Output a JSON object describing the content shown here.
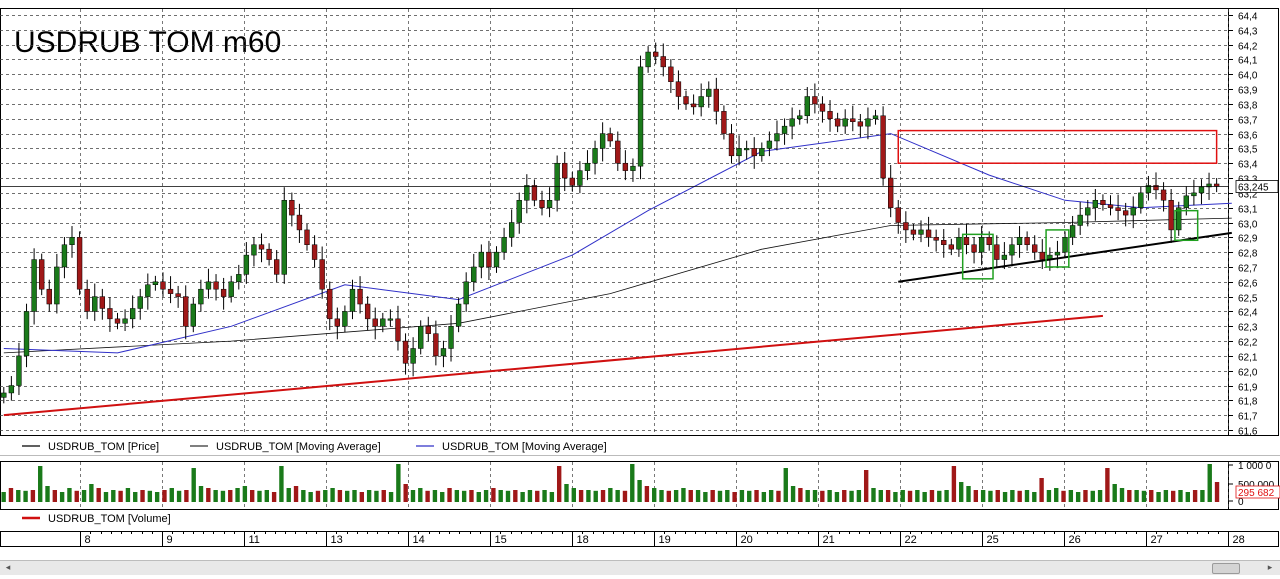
{
  "chart_data": {
    "type": "candlestick",
    "title": "USDRUB TOM m60",
    "price_axis": {
      "range": [
        61.6,
        64.4
      ],
      "tick_labels": [
        "64,4",
        "64,3",
        "64,2",
        "64,1",
        "64,0",
        "63,9",
        "63,8",
        "63,7",
        "63,6",
        "63,5",
        "63,4",
        "63,3",
        "63,2",
        "63,1",
        "63,0",
        "62,9",
        "62,8",
        "62,7",
        "62,6",
        "62,5",
        "62,4",
        "62,3",
        "62,2",
        "62,1",
        "62,0",
        "61,9",
        "61,8",
        "61,7",
        "61,6"
      ],
      "last_price": 63.245,
      "last_price_label": "63,245"
    },
    "days": [
      "8",
      "9",
      "11",
      "13",
      "14",
      "15",
      "18",
      "19",
      "20",
      "21",
      "22",
      "25",
      "26",
      "27",
      "28"
    ],
    "price_points": [
      [
        0,
        61.85
      ],
      [
        2,
        61.9
      ],
      [
        4,
        62.1
      ],
      [
        5,
        62.4
      ],
      [
        6,
        62.75
      ],
      [
        7,
        62.55
      ],
      [
        8,
        62.45
      ],
      [
        9,
        62.7
      ],
      [
        10,
        62.85
      ],
      [
        11,
        62.9
      ],
      [
        12,
        62.55
      ],
      [
        13,
        62.4
      ],
      [
        14,
        62.5
      ],
      [
        15,
        62.42
      ],
      [
        16,
        62.35
      ],
      [
        17,
        62.32
      ],
      [
        18,
        62.35
      ],
      [
        19,
        62.42
      ],
      [
        20,
        62.5
      ],
      [
        21,
        62.58
      ],
      [
        22,
        62.6
      ],
      [
        23,
        62.55
      ],
      [
        24,
        62.52
      ],
      [
        25,
        62.5
      ],
      [
        26,
        62.3
      ],
      [
        27,
        62.45
      ],
      [
        28,
        62.55
      ],
      [
        29,
        62.6
      ],
      [
        30,
        62.55
      ],
      [
        31,
        62.5
      ],
      [
        32,
        62.6
      ],
      [
        33,
        62.65
      ],
      [
        34,
        62.78
      ],
      [
        35,
        62.85
      ],
      [
        36,
        62.82
      ],
      [
        37,
        62.75
      ],
      [
        38,
        62.65
      ],
      [
        39,
        63.15
      ],
      [
        40,
        63.05
      ],
      [
        41,
        62.95
      ],
      [
        42,
        62.85
      ],
      [
        43,
        62.75
      ],
      [
        44,
        62.55
      ],
      [
        45,
        62.35
      ],
      [
        46,
        62.3
      ],
      [
        47,
        62.4
      ],
      [
        48,
        62.55
      ],
      [
        49,
        62.45
      ],
      [
        50,
        62.35
      ],
      [
        51,
        62.3
      ],
      [
        52,
        62.35
      ],
      [
        53,
        62.35
      ],
      [
        54,
        62.2
      ],
      [
        55,
        62.05
      ],
      [
        56,
        62.15
      ],
      [
        57,
        62.3
      ],
      [
        58,
        62.25
      ],
      [
        59,
        62.1
      ],
      [
        60,
        62.15
      ],
      [
        61,
        62.3
      ],
      [
        62,
        62.45
      ],
      [
        63,
        62.6
      ],
      [
        64,
        62.7
      ],
      [
        65,
        62.8
      ],
      [
        66,
        62.7
      ],
      [
        67,
        62.8
      ],
      [
        68,
        62.9
      ],
      [
        69,
        63.0
      ],
      [
        70,
        63.15
      ],
      [
        71,
        63.25
      ],
      [
        72,
        63.15
      ],
      [
        73,
        63.1
      ],
      [
        74,
        63.15
      ],
      [
        75,
        63.4
      ],
      [
        76,
        63.3
      ],
      [
        77,
        63.25
      ],
      [
        78,
        63.35
      ],
      [
        79,
        63.4
      ],
      [
        80,
        63.5
      ],
      [
        81,
        63.6
      ],
      [
        82,
        63.55
      ],
      [
        83,
        63.4
      ],
      [
        84,
        63.35
      ],
      [
        85,
        63.38
      ],
      [
        86,
        64.05
      ],
      [
        87,
        64.15
      ],
      [
        88,
        64.12
      ],
      [
        89,
        64.05
      ],
      [
        90,
        63.95
      ],
      [
        91,
        63.85
      ],
      [
        92,
        63.8
      ],
      [
        93,
        63.78
      ],
      [
        94,
        63.85
      ],
      [
        95,
        63.9
      ],
      [
        96,
        63.75
      ],
      [
        97,
        63.6
      ],
      [
        98,
        63.45
      ],
      [
        99,
        63.5
      ],
      [
        100,
        63.5
      ],
      [
        101,
        63.45
      ],
      [
        102,
        63.5
      ],
      [
        103,
        63.55
      ],
      [
        104,
        63.6
      ],
      [
        105,
        63.65
      ],
      [
        106,
        63.7
      ],
      [
        107,
        63.72
      ],
      [
        108,
        63.85
      ],
      [
        109,
        63.8
      ],
      [
        110,
        63.75
      ],
      [
        111,
        63.7
      ],
      [
        112,
        63.65
      ],
      [
        113,
        63.7
      ],
      [
        114,
        63.68
      ],
      [
        115,
        63.65
      ],
      [
        116,
        63.7
      ],
      [
        117,
        63.72
      ],
      [
        118,
        63.3
      ],
      [
        119,
        63.1
      ],
      [
        120,
        63.0
      ],
      [
        121,
        62.95
      ],
      [
        122,
        62.92
      ],
      [
        123,
        62.95
      ],
      [
        124,
        62.9
      ],
      [
        125,
        62.88
      ],
      [
        126,
        62.85
      ],
      [
        127,
        62.82
      ],
      [
        128,
        62.9
      ],
      [
        129,
        62.85
      ],
      [
        130,
        62.8
      ],
      [
        131,
        62.9
      ],
      [
        132,
        62.85
      ],
      [
        133,
        62.75
      ],
      [
        134,
        62.78
      ],
      [
        135,
        62.85
      ],
      [
        136,
        62.9
      ],
      [
        137,
        62.85
      ],
      [
        138,
        62.8
      ],
      [
        139,
        62.75
      ],
      [
        140,
        62.78
      ],
      [
        141,
        62.8
      ],
      [
        142,
        62.9
      ],
      [
        143,
        62.98
      ],
      [
        144,
        63.05
      ],
      [
        145,
        63.1
      ],
      [
        146,
        63.15
      ],
      [
        147,
        63.12
      ],
      [
        148,
        63.1
      ],
      [
        149,
        63.08
      ],
      [
        150,
        63.05
      ],
      [
        151,
        63.1
      ],
      [
        152,
        63.2
      ],
      [
        153,
        63.25
      ],
      [
        154,
        63.22
      ],
      [
        155,
        63.15
      ],
      [
        156,
        62.95
      ],
      [
        157,
        63.1
      ],
      [
        158,
        63.18
      ],
      [
        159,
        63.2
      ],
      [
        160,
        63.24
      ],
      [
        161,
        63.26
      ],
      [
        162,
        63.245
      ]
    ],
    "moving_average_blue": [
      [
        0,
        62.15
      ],
      [
        15,
        62.12
      ],
      [
        30,
        62.3
      ],
      [
        45,
        62.58
      ],
      [
        60,
        62.48
      ],
      [
        75,
        62.78
      ],
      [
        85,
        63.08
      ],
      [
        100,
        63.48
      ],
      [
        117,
        63.6
      ],
      [
        130,
        63.32
      ],
      [
        140,
        63.15
      ],
      [
        150,
        63.1
      ],
      [
        162,
        63.13
      ]
    ],
    "moving_average_black": [
      [
        0,
        62.12
      ],
      [
        30,
        62.2
      ],
      [
        60,
        62.32
      ],
      [
        80,
        62.52
      ],
      [
        100,
        62.82
      ],
      [
        117,
        62.98
      ],
      [
        140,
        63.0
      ],
      [
        162,
        63.03
      ]
    ],
    "volume": {
      "axis_labels": [
        "1 000 0",
        "500 000",
        "0"
      ],
      "last_volume_label": "295 682",
      "values": [
        0.25,
        0.35,
        0.3,
        0.28,
        0.3,
        0.9,
        0.4,
        0.3,
        0.25,
        0.35,
        0.28,
        0.3,
        0.45,
        0.35,
        0.25,
        0.3,
        0.28,
        0.35,
        0.25,
        0.3,
        0.28,
        0.25,
        0.3,
        0.35,
        0.28,
        0.3,
        0.85,
        0.4,
        0.35,
        0.3,
        0.28,
        0.3,
        0.35,
        0.4,
        0.3,
        0.28,
        0.3,
        0.25,
        0.9,
        0.35,
        0.4,
        0.3,
        0.25,
        0.28,
        0.3,
        0.35,
        0.3,
        0.28,
        0.3,
        0.25,
        0.3,
        0.28,
        0.3,
        0.25,
        0.95,
        0.45,
        0.3,
        0.35,
        0.28,
        0.3,
        0.25,
        0.35,
        0.3,
        0.28,
        0.3,
        0.25,
        0.3,
        0.35,
        0.3,
        0.28,
        0.3,
        0.25,
        0.3,
        0.28,
        0.3,
        0.25,
        0.9,
        0.45,
        0.35,
        0.3,
        0.3,
        0.28,
        0.3,
        0.35,
        0.3,
        0.28,
        0.95,
        0.55,
        0.4,
        0.35,
        0.3,
        0.28,
        0.3,
        0.35,
        0.3,
        0.3,
        0.25,
        0.3,
        0.28,
        0.3,
        0.25,
        0.3,
        0.28,
        0.3,
        0.25,
        0.3,
        0.28,
        0.85,
        0.4,
        0.35,
        0.3,
        0.3,
        0.28,
        0.3,
        0.25,
        0.3,
        0.28,
        0.3,
        0.8,
        0.35,
        0.3,
        0.3,
        0.25,
        0.3,
        0.28,
        0.3,
        0.25,
        0.3,
        0.28,
        0.3,
        0.9,
        0.5,
        0.4,
        0.3,
        0.3,
        0.28,
        0.3,
        0.25,
        0.3,
        0.28,
        0.3,
        0.25,
        0.6,
        0.3,
        0.35,
        0.28,
        0.3,
        0.25,
        0.3,
        0.28,
        0.3,
        0.85,
        0.45,
        0.35,
        0.3,
        0.3,
        0.28,
        0.3,
        0.25,
        0.3,
        0.28,
        0.3,
        0.25,
        0.3,
        0.3,
        0.95,
        0.5
      ]
    },
    "legend": {
      "price": "USDRUB_TOM [Price]",
      "ma1": "USDRUB_TOM [Moving Average]",
      "ma2": "USDRUB_TOM [Moving Average]",
      "volume": "USDRUB_TOM [Volume]"
    },
    "colors": {
      "up": "#1a7a1a",
      "down": "#a01818",
      "ma_blue": "#3030c8",
      "ma_black": "#101010",
      "trend_red": "#d01010",
      "resistance_box": "#e01010",
      "pattern_box": "#20a020",
      "grid": "#404040",
      "last_price_bg": "#ffffff",
      "volume_label": "#e01010"
    },
    "annotations": {
      "red_trendline": [
        [
          0,
          61.7
        ],
        [
          145,
          62.37
        ]
      ],
      "black_support_line": [
        [
          118,
          62.6
        ],
        [
          162,
          62.93
        ]
      ],
      "resistance_zone": {
        "from_bar": 118,
        "to_bar": 160,
        "price_low": 63.4,
        "price_high": 63.62
      },
      "green_boxes": [
        {
          "from_bar": 127,
          "to_bar": 130,
          "price_low": 62.62,
          "price_high": 62.92
        },
        {
          "from_bar": 138,
          "to_bar": 140,
          "price_low": 62.7,
          "price_high": 62.95
        },
        {
          "from_bar": 155,
          "to_bar": 157,
          "price_low": 62.88,
          "price_high": 63.08
        }
      ]
    }
  }
}
